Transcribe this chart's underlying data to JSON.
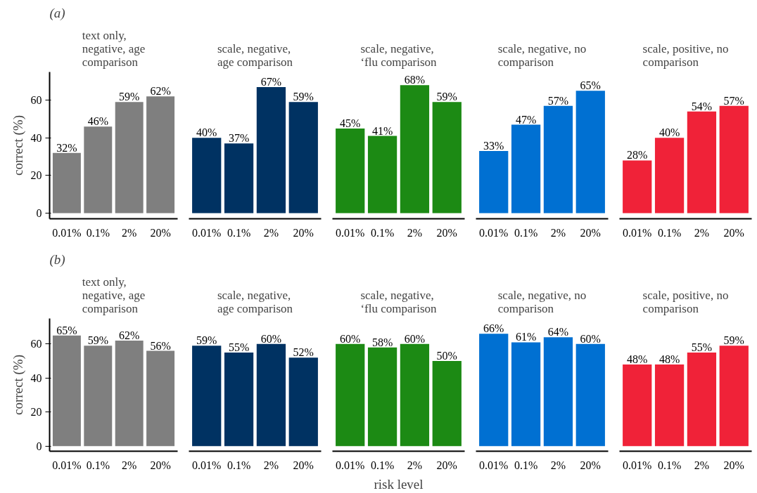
{
  "chart_data": [
    {
      "type": "bar",
      "title": "text only, negative, age comparison",
      "ylabel": "correct (%)",
      "annotations": [
        "(a)"
      ],
      "categories": [
        "0.01%",
        "0.1%",
        "2%",
        "20%"
      ],
      "values": [
        32,
        46,
        59,
        62
      ],
      "value_labels": [
        "32%",
        "46%",
        "59%",
        "62%"
      ],
      "color": "#7f7f7f",
      "ylim": [
        -3,
        75
      ],
      "yticks": [
        0,
        20,
        40,
        60
      ],
      "grid": false
    },
    {
      "type": "bar",
      "title": "scale, negative, age comparison",
      "categories": [
        "0.01%",
        "0.1%",
        "2%",
        "20%"
      ],
      "values": [
        40,
        37,
        67,
        59
      ],
      "value_labels": [
        "40%",
        "37%",
        "67%",
        "59%"
      ],
      "color": "#003262",
      "tick_labels": "x",
      "grid": false
    },
    {
      "type": "bar",
      "title": "scale, negative, ‘flu comparison",
      "categories": [
        "0.01%",
        "0.1%",
        "2%",
        "20%"
      ],
      "values": [
        45,
        41,
        68,
        59
      ],
      "value_labels": [
        "45%",
        "41%",
        "68%",
        "59%"
      ],
      "color": "#1c8a14",
      "tick_labels": "x",
      "grid": false
    },
    {
      "type": "bar",
      "title": "scale, negative, no comparison",
      "categories": [
        "0.01%",
        "0.1%",
        "2%",
        "20%"
      ],
      "values": [
        33,
        47,
        57,
        65
      ],
      "value_labels": [
        "33%",
        "47%",
        "57%",
        "65%"
      ],
      "color": "#0070d2",
      "tick_labels": "x",
      "grid": false
    },
    {
      "type": "bar",
      "title": "scale, positive, no comparison",
      "categories": [
        "0.01%",
        "0.1%",
        "2%",
        "20%"
      ],
      "values": [
        28,
        40,
        54,
        57
      ],
      "value_labels": [
        "28%",
        "40%",
        "54%",
        "57%"
      ],
      "color": "#f02238",
      "tick_labels": "x",
      "grid": false
    },
    {
      "type": "bar",
      "title": "text only, negative, age comparison",
      "ylabel": "correct (%)",
      "annotations": [
        "(b)"
      ],
      "categories": [
        "0.01%",
        "0.1%",
        "2%",
        "20%"
      ],
      "values": [
        65,
        59,
        62,
        56
      ],
      "value_labels": [
        "65%",
        "59%",
        "62%",
        "56%"
      ],
      "color": "#7f7f7f",
      "ylim": [
        -3,
        75
      ],
      "yticks": [
        0,
        20,
        40,
        60
      ],
      "grid": false
    },
    {
      "type": "bar",
      "title": "scale, negative, age comparison",
      "categories": [
        "0.01%",
        "0.1%",
        "2%",
        "20%"
      ],
      "values": [
        59,
        55,
        60,
        52
      ],
      "value_labels": [
        "59%",
        "55%",
        "60%",
        "52%"
      ],
      "color": "#003262",
      "tick_labels": "x",
      "grid": false
    },
    {
      "type": "bar",
      "title": "scale, negative, ‘flu comparison",
      "xlabel": "risk level",
      "categories": [
        "0.01%",
        "0.1%",
        "2%",
        "20%"
      ],
      "values": [
        60,
        58,
        60,
        50
      ],
      "value_labels": [
        "60%",
        "58%",
        "60%",
        "50%"
      ],
      "color": "#1c8a14",
      "tick_labels": "x",
      "grid": false
    },
    {
      "type": "bar",
      "title": "scale, negative, no comparison",
      "categories": [
        "0.01%",
        "0.1%",
        "2%",
        "20%"
      ],
      "values": [
        66,
        61,
        64,
        60
      ],
      "value_labels": [
        "66%",
        "61%",
        "64%",
        "60%"
      ],
      "color": "#0070d2",
      "tick_labels": "x",
      "grid": false
    },
    {
      "type": "bar",
      "title": "scale, positive, no comparison",
      "categories": [
        "0.01%",
        "0.1%",
        "2%",
        "20%"
      ],
      "values": [
        48,
        48,
        55,
        59
      ],
      "value_labels": [
        "48%",
        "48%",
        "55%",
        "59%"
      ],
      "color": "#f02238",
      "tick_labels": "x",
      "grid": false
    }
  ]
}
